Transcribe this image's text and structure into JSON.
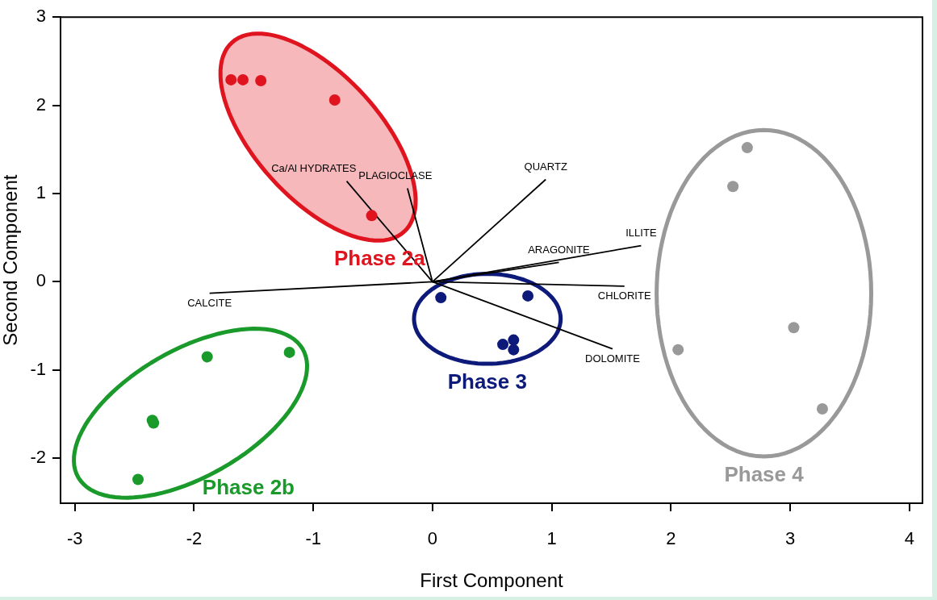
{
  "chart_data": {
    "type": "scatter",
    "xlabel": "First Component",
    "ylabel": "Second Component",
    "xlim": [
      -3.12,
      4.11
    ],
    "ylim": [
      -2.51,
      3.0
    ],
    "xticks": [
      -3,
      -2,
      -1,
      0,
      1,
      2,
      3,
      4
    ],
    "yticks": [
      -2,
      -1,
      0,
      1,
      2,
      3
    ],
    "grid": false,
    "legend": false,
    "series": [
      {
        "type": "line",
        "color": "#000000",
        "x": [
          -1.87,
          0,
          1.61
        ],
        "values": [
          -0.13,
          0,
          -0.05
        ],
        "marker": "none"
      },
      {
        "type": "line",
        "color": "#000000",
        "x": [
          -0.72,
          0
        ],
        "values": [
          1.14,
          0
        ],
        "marker": "none"
      },
      {
        "type": "line",
        "color": "#000000",
        "x": [
          -0.21,
          0
        ],
        "values": [
          1.06,
          0
        ],
        "marker": "none"
      },
      {
        "type": "line",
        "color": "#000000",
        "x": [
          0,
          0.95
        ],
        "values": [
          0,
          1.16
        ],
        "marker": "none"
      },
      {
        "type": "line",
        "color": "#000000",
        "x": [
          0,
          1.75
        ],
        "values": [
          0,
          0.41
        ],
        "marker": "none"
      },
      {
        "type": "line",
        "color": "#000000",
        "x": [
          0,
          1.06
        ],
        "values": [
          0,
          0.22
        ],
        "marker": "none"
      },
      {
        "type": "line",
        "color": "#000000",
        "x": [
          0,
          1.51
        ],
        "values": [
          0,
          -0.76
        ],
        "marker": "none"
      },
      {
        "name": "Phase 2a",
        "color": "#e0141e",
        "x": [
          -1.69,
          -1.59,
          -1.44,
          -0.82,
          -0.51
        ],
        "values": [
          2.29,
          2.29,
          2.28,
          2.06,
          0.75
        ],
        "marker": "circle"
      },
      {
        "name": "Phase 2b",
        "color": "#1a9a2a",
        "x": [
          -1.89,
          -1.2,
          -2.35,
          -2.34,
          -2.47
        ],
        "values": [
          -0.85,
          -0.8,
          -1.57,
          -1.6,
          -2.24
        ],
        "marker": "circle"
      },
      {
        "name": "Phase 3",
        "color": "#0d1a7a",
        "x": [
          0.07,
          0.8,
          0.59,
          0.68,
          0.68
        ],
        "values": [
          -0.18,
          -0.16,
          -0.71,
          -0.66,
          -0.77
        ],
        "marker": "circle"
      },
      {
        "name": "Phase 4",
        "color": "#999999",
        "x": [
          2.64,
          2.52,
          3.03,
          2.06,
          3.27
        ],
        "values": [
          1.52,
          1.08,
          -0.52,
          -0.77,
          -1.44
        ],
        "marker": "circle"
      }
    ],
    "annotations": [
      {
        "text": "CALCITE",
        "x": -1.87,
        "y": -0.13
      },
      {
        "text": "Ca/Al HYDRATES",
        "x": -0.72,
        "y": 1.14
      },
      {
        "text": "PLAGIOCLASE",
        "x": -0.21,
        "y": 1.06
      },
      {
        "text": "QUARTZ",
        "x": 0.95,
        "y": 1.16
      },
      {
        "text": "ILLITE",
        "x": 1.75,
        "y": 0.41
      },
      {
        "text": "ARAGONITE",
        "x": 1.06,
        "y": 0.22
      },
      {
        "text": "CHLORITE",
        "x": 1.61,
        "y": -0.05
      },
      {
        "text": "DOLOMITE",
        "x": 1.51,
        "y": -0.76
      }
    ]
  }
}
